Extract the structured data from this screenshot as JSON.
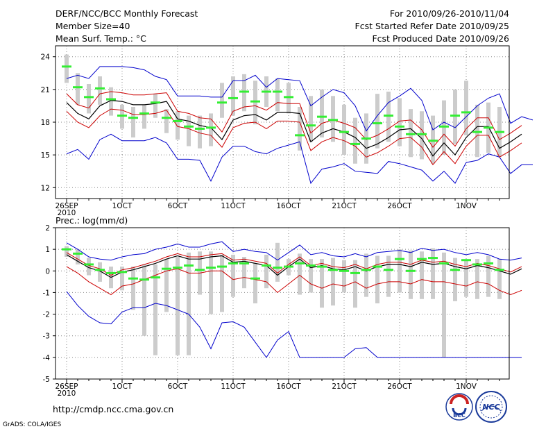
{
  "header": {
    "title": "DERF/NCC/BCC Monthly Forecast",
    "member_size": "Member Size=40",
    "variable_label": "Mean Surf. Temp.: °C",
    "forecast_period": "For 2010/09/26-2010/11/04",
    "refer_date": "Fcst Started Refer Date 2010/09/25",
    "produced_date": "Fcst Produced Date 2010/09/26"
  },
  "footer": {
    "url": "http://cmdp.ncc.cma.gov.cn",
    "credit": "GrADS: COLA/IGES",
    "logo_bcc_text": "BCC",
    "logo_ncc_text": "NCC"
  },
  "colors": {
    "box": "#cccccc",
    "median": "#33ee33",
    "mean_line": "#000000",
    "inner_band": "#cc0000",
    "outer_band": "#0000cc",
    "grid": "#888888"
  },
  "chart_data": [
    {
      "type": "line",
      "title": "Mean Surf. Temp.: °C",
      "x_tick_labels": [
        "26SEP",
        "1OCT",
        "6OCT",
        "11OCT",
        "16OCT",
        "21OCT",
        "26OCT",
        "1NOV"
      ],
      "x_tick_days": [
        0,
        5,
        10,
        15,
        20,
        25,
        30,
        36
      ],
      "x_sublabel": "2010",
      "days": 40,
      "ylim": [
        11,
        25
      ],
      "y_ticks": [
        12,
        15,
        18,
        21,
        24
      ],
      "y_tick_labels": [
        "12",
        "15",
        "18",
        "21",
        "24"
      ],
      "series": [
        {
          "name": "mean",
          "values": [
            19.8,
            18.8,
            18.3,
            19.5,
            20.0,
            19.9,
            19.6,
            19.6,
            19.7,
            19.9,
            18.3,
            18.1,
            17.7,
            17.5,
            16.4,
            18.2,
            18.6,
            18.7,
            18.2,
            18.9,
            18.9,
            18.8,
            16.2,
            17.0,
            17.4,
            17.1,
            16.6,
            15.6,
            16.0,
            16.6,
            17.3,
            17.4,
            16.5,
            14.9,
            16.1,
            15.0,
            16.6,
            17.6,
            17.6,
            15.6,
            16.2,
            16.9
          ]
        },
        {
          "name": "mean_plus_sd",
          "values": [
            20.6,
            19.6,
            19.3,
            20.6,
            20.8,
            20.7,
            20.5,
            20.5,
            20.6,
            20.7,
            19.0,
            18.8,
            18.4,
            18.3,
            17.1,
            19.0,
            19.4,
            19.5,
            19.1,
            19.8,
            19.7,
            19.7,
            17.0,
            17.9,
            18.2,
            17.9,
            17.5,
            16.4,
            16.8,
            17.4,
            18.1,
            18.2,
            17.3,
            15.7,
            16.9,
            15.8,
            17.4,
            18.4,
            18.4,
            16.4,
            17.0,
            17.7
          ]
        },
        {
          "name": "mean_minus_sd",
          "values": [
            19.0,
            18.0,
            17.5,
            18.6,
            19.2,
            19.1,
            18.7,
            18.7,
            18.8,
            19.1,
            17.6,
            17.4,
            17.0,
            16.8,
            15.7,
            17.5,
            17.9,
            18.0,
            17.4,
            18.1,
            18.1,
            18.0,
            15.4,
            16.2,
            16.6,
            16.3,
            15.8,
            14.8,
            15.2,
            15.8,
            16.5,
            16.6,
            15.7,
            14.1,
            15.3,
            14.2,
            15.8,
            16.8,
            16.8,
            14.8,
            15.4,
            16.1
          ]
        },
        {
          "name": "upper_bound",
          "values": [
            22.0,
            22.3,
            22.0,
            23.1,
            23.1,
            23.1,
            23.0,
            22.8,
            22.2,
            21.9,
            20.4,
            20.4,
            20.4,
            20.3,
            20.3,
            21.8,
            21.8,
            22.3,
            21.2,
            22.0,
            21.9,
            21.8,
            19.5,
            20.3,
            21.0,
            20.7,
            19.5,
            17.2,
            18.6,
            19.8,
            20.4,
            21.1,
            20.0,
            17.3,
            18.0,
            17.5,
            18.5,
            19.5,
            20.2,
            20.6,
            17.9,
            18.5,
            18.2
          ]
        },
        {
          "name": "lower_bound",
          "values": [
            15.1,
            15.5,
            14.6,
            16.4,
            16.9,
            16.3,
            16.3,
            16.3,
            16.6,
            16.1,
            14.6,
            14.6,
            14.5,
            12.6,
            14.8,
            15.8,
            15.8,
            15.3,
            15.1,
            15.6,
            15.9,
            16.2,
            12.4,
            13.7,
            13.9,
            14.2,
            13.5,
            13.4,
            13.3,
            14.4,
            14.2,
            13.9,
            13.6,
            12.6,
            13.5,
            12.4,
            14.3,
            14.5,
            15.1,
            14.8,
            13.3,
            14.1,
            14.1
          ]
        },
        {
          "name": "median",
          "values": [
            23.1,
            21.2,
            20.3,
            21.1,
            20.1,
            18.6,
            18.4,
            18.8,
            19.8,
            18.4,
            18.1,
            17.6,
            17.4,
            17.5,
            19.8,
            20.2,
            20.8,
            19.9,
            20.8,
            20.8,
            20.3,
            16.8,
            17.7,
            18.5,
            18.2,
            17.1,
            16.0,
            16.5,
            17.9,
            18.6,
            17.6,
            16.9,
            16.9,
            16.3,
            17.6,
            18.6,
            18.9,
            17.1,
            17.5,
            17.1
          ]
        },
        {
          "name": "box_top",
          "values": [
            24.2,
            22.5,
            21.5,
            22.2,
            21.2,
            19.6,
            19.4,
            19.6,
            20.6,
            19.2,
            19.0,
            18.6,
            18.6,
            18.8,
            21.6,
            22.2,
            22.4,
            21.8,
            22.2,
            22.0,
            21.6,
            19.4,
            20.4,
            21.0,
            20.4,
            19.6,
            18.4,
            18.8,
            20.6,
            20.8,
            20.2,
            19.2,
            19.0,
            18.6,
            20.0,
            21.0,
            21.8,
            19.6,
            19.8,
            19.4
          ]
        },
        {
          "name": "box_bottom",
          "values": [
            21.6,
            19.6,
            18.8,
            19.6,
            18.6,
            17.4,
            16.6,
            17.4,
            18.4,
            17.0,
            16.4,
            15.8,
            15.6,
            15.8,
            18.4,
            18.6,
            19.0,
            17.8,
            19.4,
            19.0,
            18.8,
            15.4,
            16.2,
            16.6,
            16.2,
            15.0,
            14.2,
            14.2,
            15.6,
            16.2,
            15.8,
            14.8,
            14.6,
            14.2,
            15.0,
            16.0,
            16.8,
            14.8,
            15.2,
            14.8
          ]
        }
      ]
    },
    {
      "type": "line",
      "title": "Prec.: log(mm/d)",
      "x_tick_labels": [
        "26SEP",
        "1OCT",
        "6OCT",
        "11OCT",
        "16OCT",
        "21OCT",
        "26OCT",
        "1NOV"
      ],
      "x_tick_days": [
        0,
        5,
        10,
        15,
        20,
        25,
        30,
        36
      ],
      "x_sublabel": "2010",
      "days": 40,
      "ylim": [
        -5,
        2
      ],
      "y_ticks": [
        -5,
        -4,
        -3,
        -2,
        -1,
        0,
        1,
        2
      ],
      "y_tick_labels": [
        "-5",
        "-4",
        "-3",
        "-2",
        "-1",
        "0",
        "1",
        "2"
      ],
      "series": [
        {
          "name": "mean",
          "values": [
            0.75,
            0.45,
            0.15,
            0.0,
            -0.3,
            -0.05,
            0.05,
            0.2,
            0.35,
            0.55,
            0.7,
            0.55,
            0.55,
            0.65,
            0.7,
            0.4,
            0.45,
            0.35,
            0.25,
            -0.2,
            0.2,
            0.55,
            0.15,
            0.25,
            0.1,
            0.05,
            0.2,
            0.0,
            0.2,
            0.3,
            0.3,
            0.2,
            0.4,
            0.3,
            0.35,
            0.2,
            0.1,
            0.25,
            0.15,
            0.0,
            -0.15,
            0.1
          ]
        },
        {
          "name": "mean_plus_sd",
          "values": [
            0.85,
            0.55,
            0.25,
            0.1,
            -0.2,
            0.05,
            0.15,
            0.3,
            0.45,
            0.65,
            0.8,
            0.65,
            0.65,
            0.75,
            0.8,
            0.5,
            0.55,
            0.45,
            0.35,
            -0.1,
            0.3,
            0.65,
            0.25,
            0.35,
            0.2,
            0.15,
            0.3,
            0.1,
            0.3,
            0.4,
            0.4,
            0.3,
            0.5,
            0.4,
            0.45,
            0.3,
            0.2,
            0.35,
            0.25,
            0.1,
            -0.05,
            0.2
          ]
        },
        {
          "name": "mean_minus_sd",
          "values": [
            0.2,
            -0.1,
            -0.5,
            -0.8,
            -1.1,
            -0.7,
            -0.6,
            -0.4,
            -0.2,
            0.0,
            0.1,
            -0.1,
            -0.1,
            0.0,
            0.0,
            -0.4,
            -0.3,
            -0.4,
            -0.5,
            -1.0,
            -0.6,
            -0.2,
            -0.6,
            -0.8,
            -0.6,
            -0.7,
            -0.5,
            -0.8,
            -0.6,
            -0.5,
            -0.5,
            -0.6,
            -0.4,
            -0.5,
            -0.5,
            -0.6,
            -0.7,
            -0.5,
            -0.6,
            -0.9,
            -1.1,
            -0.9
          ]
        },
        {
          "name": "upper_bound",
          "values": [
            1.3,
            1.0,
            0.65,
            0.55,
            0.5,
            0.65,
            0.75,
            0.8,
            1.0,
            1.1,
            1.25,
            1.1,
            1.1,
            1.25,
            1.35,
            0.9,
            1.0,
            0.9,
            0.85,
            0.5,
            0.85,
            1.2,
            0.75,
            0.85,
            0.7,
            0.65,
            0.8,
            0.65,
            0.85,
            0.9,
            0.95,
            0.85,
            1.05,
            0.95,
            1.0,
            0.85,
            0.75,
            0.85,
            0.75,
            0.55,
            0.5,
            0.6
          ]
        },
        {
          "name": "lower_bound",
          "values": [
            -0.95,
            -1.6,
            -2.1,
            -2.4,
            -2.45,
            -1.9,
            -1.7,
            -1.7,
            -1.5,
            -1.6,
            -1.8,
            -2.0,
            -2.6,
            -3.6,
            -2.4,
            -2.35,
            -2.6,
            -3.3,
            -4.0,
            -3.2,
            -2.8,
            -4.0,
            -4.0,
            -4.0,
            -4.0,
            -4.0,
            -3.6,
            -3.55,
            -4.0,
            -4.0,
            -4.0,
            -4.0,
            -4.0,
            -4.0,
            -4.0,
            -4.0,
            -4.0,
            -4.0,
            -4.0,
            -4.0,
            -4.0,
            -4.0
          ]
        },
        {
          "name": "median",
          "values": [
            1.0,
            0.8,
            0.3,
            0.05,
            -0.1,
            -0.05,
            -0.35,
            -0.4,
            -0.3,
            0.1,
            0.15,
            0.25,
            0.05,
            0.15,
            0.2,
            0.35,
            0.35,
            -0.35,
            0.25,
            0.15,
            0.2,
            0.35,
            0.25,
            0.2,
            0.05,
            0.0,
            -0.1,
            0.05,
            0.2,
            0.05,
            0.55,
            0.0,
            0.55,
            0.6,
            0.35,
            0.05,
            0.5,
            0.3,
            0.35,
            0.05
          ]
        },
        {
          "name": "box_top",
          "values": [
            1.15,
            1.0,
            0.6,
            0.4,
            0.2,
            0.2,
            0.2,
            0.3,
            0.3,
            0.55,
            0.65,
            0.85,
            0.9,
            0.9,
            0.75,
            0.75,
            0.65,
            0.35,
            0.75,
            1.3,
            0.55,
            0.8,
            0.55,
            0.55,
            0.6,
            0.5,
            0.5,
            0.8,
            0.7,
            0.7,
            1.0,
            0.95,
            0.9,
            1.05,
            0.85,
            0.6,
            0.5,
            0.55,
            0.7,
            0.55
          ]
        },
        {
          "name": "box_bottom",
          "values": [
            0.65,
            0.3,
            -0.2,
            -0.5,
            -0.8,
            -0.9,
            -1.8,
            -3.0,
            -3.9,
            -1.9,
            -3.9,
            -3.9,
            -1.1,
            -2.0,
            -1.9,
            -1.2,
            -0.8,
            -1.5,
            -0.8,
            -0.5,
            -0.2,
            -1.1,
            -1.0,
            -1.7,
            -1.6,
            -1.0,
            -1.7,
            -1.2,
            -1.5,
            -1.2,
            -1.0,
            -1.3,
            -1.3,
            -1.3,
            -4.0,
            -1.4,
            -1.2,
            -1.3,
            -1.2,
            -1.3
          ]
        }
      ]
    }
  ]
}
